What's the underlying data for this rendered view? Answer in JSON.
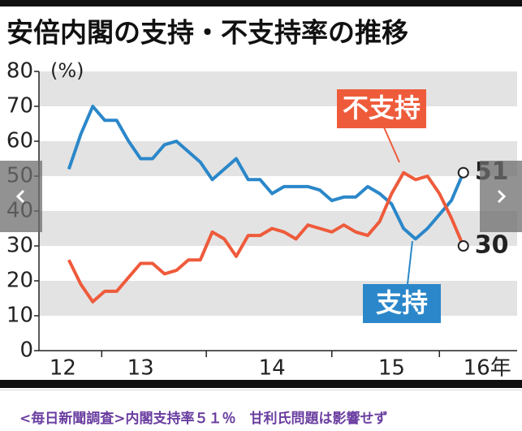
{
  "chart_data": {
    "type": "line",
    "title": "安倍内閣の支持・不支持率の推移",
    "y_label": "(%)",
    "x": [
      12.8,
      12.9,
      13.0,
      13.1,
      13.2,
      13.3,
      13.4,
      13.5,
      13.6,
      13.7,
      13.8,
      13.9,
      14.0,
      14.1,
      14.2,
      14.3,
      14.4,
      14.5,
      14.6,
      14.7,
      14.8,
      14.9,
      15.0,
      15.1,
      15.2,
      15.3,
      15.4,
      15.5,
      15.6,
      15.7,
      15.8,
      15.9,
      16.0,
      16.1
    ],
    "series": [
      {
        "name": "支持",
        "color": "#2b87c9",
        "values": [
          52,
          62,
          70,
          66,
          66,
          60,
          55,
          55,
          59,
          60,
          57,
          54,
          49,
          52,
          55,
          49,
          49,
          45,
          47,
          47,
          47,
          46,
          43,
          44,
          44,
          47,
          45,
          42,
          35,
          32,
          35,
          39,
          43,
          51
        ],
        "end_label": "51"
      },
      {
        "name": "不支持",
        "color": "#ee5b3b",
        "values": [
          26,
          19,
          14,
          17,
          17,
          21,
          25,
          25,
          22,
          23,
          26,
          26,
          34,
          32,
          27,
          33,
          33,
          35,
          34,
          32,
          36,
          35,
          34,
          36,
          34,
          33,
          37,
          45,
          51,
          49,
          50,
          45,
          38,
          30
        ],
        "end_label": "30"
      }
    ],
    "xlim": [
      12.55,
      16.55
    ],
    "xticks": [
      {
        "value": 12.75,
        "label": "12"
      },
      {
        "value": 13.4,
        "label": "13"
      },
      {
        "value": 14.5,
        "label": "14"
      },
      {
        "value": 15.5,
        "label": "15"
      },
      {
        "value": 16.3,
        "label": "16年"
      }
    ],
    "ylim": [
      0,
      80
    ],
    "yticks": [
      0,
      10,
      20,
      30,
      40,
      50,
      60,
      70,
      80
    ],
    "grid": "bands"
  },
  "caption": "<毎日新聞調査>内閣支持率５１％　甘利氏問題は影響せず"
}
